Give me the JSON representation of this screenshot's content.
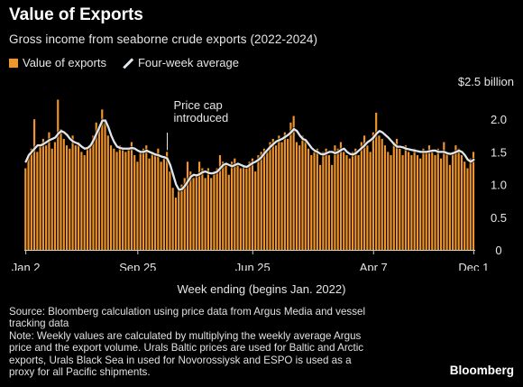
{
  "title": "Value of Exports",
  "subtitle": "Gross income from seaborne crude exports (2022-2024)",
  "legend": {
    "bars_label": "Value of exports",
    "line_label": "Four-week average",
    "bar_color": "#f0952a",
    "line_color": "#dfe6ee"
  },
  "annotation": "Price cap\nintroduced",
  "footer": {
    "source": "Source: Bloomberg calculation using price data from Argus Media and vessel tracking data",
    "note": "Note: Weekly values are calculated by multiplying the weekly average Argus price and the export volume. Urals Baltic prices are used for Baltic and Arctic exports, Urals Black Sea in used for Novorossiysk and ESPO is used as a proxy for all Pacific shipments.",
    "brand": "Bloomberg"
  },
  "chart_data": {
    "type": "bar",
    "title": "Value of Exports",
    "subtitle": "Gross income from seaborne crude exports (2022-2024)",
    "xlabel": "Week ending (begins Jan. 2022)",
    "ylabel": "",
    "unit_label": "$2.5 billion",
    "ylim": [
      0,
      2.5
    ],
    "yticks": [
      "0",
      "0.5",
      "1.0",
      "1.5",
      "2.0"
    ],
    "x_tick_labels": [
      {
        "label": "Jan 2",
        "index": 0
      },
      {
        "label": "Sep 25",
        "index": 38
      },
      {
        "label": "Jun 25",
        "index": 77
      },
      {
        "label": "Apr 7",
        "index": 118
      },
      {
        "label": "Dec 1",
        "index": 152
      }
    ],
    "annotation": {
      "text": "Price cap\nintroduced",
      "index": 48
    },
    "grid": false,
    "legend_position": "top-left",
    "series": [
      {
        "name": "Value of exports",
        "type": "bar",
        "values": [
          1.25,
          1.45,
          1.55,
          2.0,
          1.5,
          1.6,
          1.7,
          1.6,
          1.8,
          1.55,
          1.65,
          2.3,
          1.85,
          1.7,
          1.6,
          1.55,
          1.75,
          1.6,
          1.65,
          1.5,
          1.45,
          1.55,
          1.6,
          1.75,
          1.95,
          1.85,
          2.15,
          2.0,
          1.75,
          1.6,
          1.55,
          1.5,
          1.6,
          1.55,
          1.5,
          1.55,
          1.65,
          1.45,
          1.35,
          1.5,
          1.55,
          1.6,
          1.4,
          1.5,
          1.45,
          1.55,
          1.35,
          1.4,
          1.5,
          1.2,
          0.95,
          0.8,
          0.9,
          1.0,
          1.1,
          1.35,
          1.2,
          1.1,
          1.15,
          1.35,
          1.25,
          1.1,
          1.25,
          1.1,
          1.2,
          1.25,
          1.45,
          1.35,
          1.3,
          1.15,
          1.35,
          1.4,
          1.3,
          1.25,
          1.3,
          1.25,
          1.35,
          1.4,
          1.2,
          1.45,
          1.5,
          1.55,
          1.5,
          1.65,
          1.7,
          1.6,
          1.75,
          1.65,
          1.8,
          1.7,
          1.95,
          2.05,
          1.65,
          1.6,
          1.75,
          1.7,
          1.55,
          1.45,
          1.5,
          1.55,
          1.3,
          1.5,
          1.55,
          1.45,
          1.3,
          1.6,
          1.55,
          1.65,
          1.5,
          1.45,
          1.4,
          1.5,
          1.55,
          1.45,
          1.65,
          1.75,
          1.6,
          1.5,
          1.8,
          2.1,
          1.75,
          1.7,
          1.6,
          1.5,
          1.45,
          1.65,
          1.7,
          1.55,
          1.45,
          1.6,
          1.5,
          1.45,
          1.55,
          1.45,
          1.4,
          1.55,
          1.5,
          1.6,
          1.5,
          1.45,
          1.55,
          1.4,
          1.65,
          1.5,
          1.3,
          1.5,
          1.6,
          1.55,
          1.45,
          1.35,
          1.25,
          1.4,
          1.5
        ]
      },
      {
        "name": "Four-week average",
        "type": "line",
        "values": [
          1.35,
          1.45,
          1.5,
          1.55,
          1.6,
          1.6,
          1.62,
          1.65,
          1.68,
          1.7,
          1.72,
          1.78,
          1.82,
          1.8,
          1.76,
          1.7,
          1.66,
          1.64,
          1.62,
          1.58,
          1.55,
          1.56,
          1.6,
          1.68,
          1.78,
          1.88,
          1.98,
          1.98,
          1.88,
          1.75,
          1.65,
          1.58,
          1.56,
          1.55,
          1.55,
          1.55,
          1.56,
          1.55,
          1.52,
          1.5,
          1.5,
          1.52,
          1.5,
          1.48,
          1.46,
          1.45,
          1.43,
          1.42,
          1.4,
          1.3,
          1.15,
          1.0,
          0.92,
          0.93,
          0.98,
          1.05,
          1.12,
          1.15,
          1.14,
          1.16,
          1.19,
          1.2,
          1.18,
          1.17,
          1.18,
          1.2,
          1.25,
          1.3,
          1.32,
          1.3,
          1.28,
          1.3,
          1.32,
          1.3,
          1.28,
          1.27,
          1.3,
          1.33,
          1.35,
          1.38,
          1.42,
          1.48,
          1.53,
          1.58,
          1.62,
          1.66,
          1.68,
          1.7,
          1.73,
          1.76,
          1.8,
          1.85,
          1.82,
          1.75,
          1.7,
          1.68,
          1.62,
          1.56,
          1.52,
          1.5,
          1.47,
          1.46,
          1.48,
          1.5,
          1.5,
          1.48,
          1.5,
          1.53,
          1.55,
          1.5,
          1.47,
          1.46,
          1.48,
          1.52,
          1.56,
          1.6,
          1.65,
          1.68,
          1.72,
          1.78,
          1.82,
          1.8,
          1.76,
          1.72,
          1.67,
          1.62,
          1.58,
          1.58,
          1.57,
          1.55,
          1.54,
          1.53,
          1.52,
          1.51,
          1.5,
          1.5,
          1.5,
          1.51,
          1.52,
          1.52,
          1.5,
          1.5,
          1.5,
          1.48,
          1.47,
          1.48,
          1.5,
          1.52,
          1.5,
          1.45,
          1.38,
          1.35,
          1.38
        ]
      }
    ]
  }
}
